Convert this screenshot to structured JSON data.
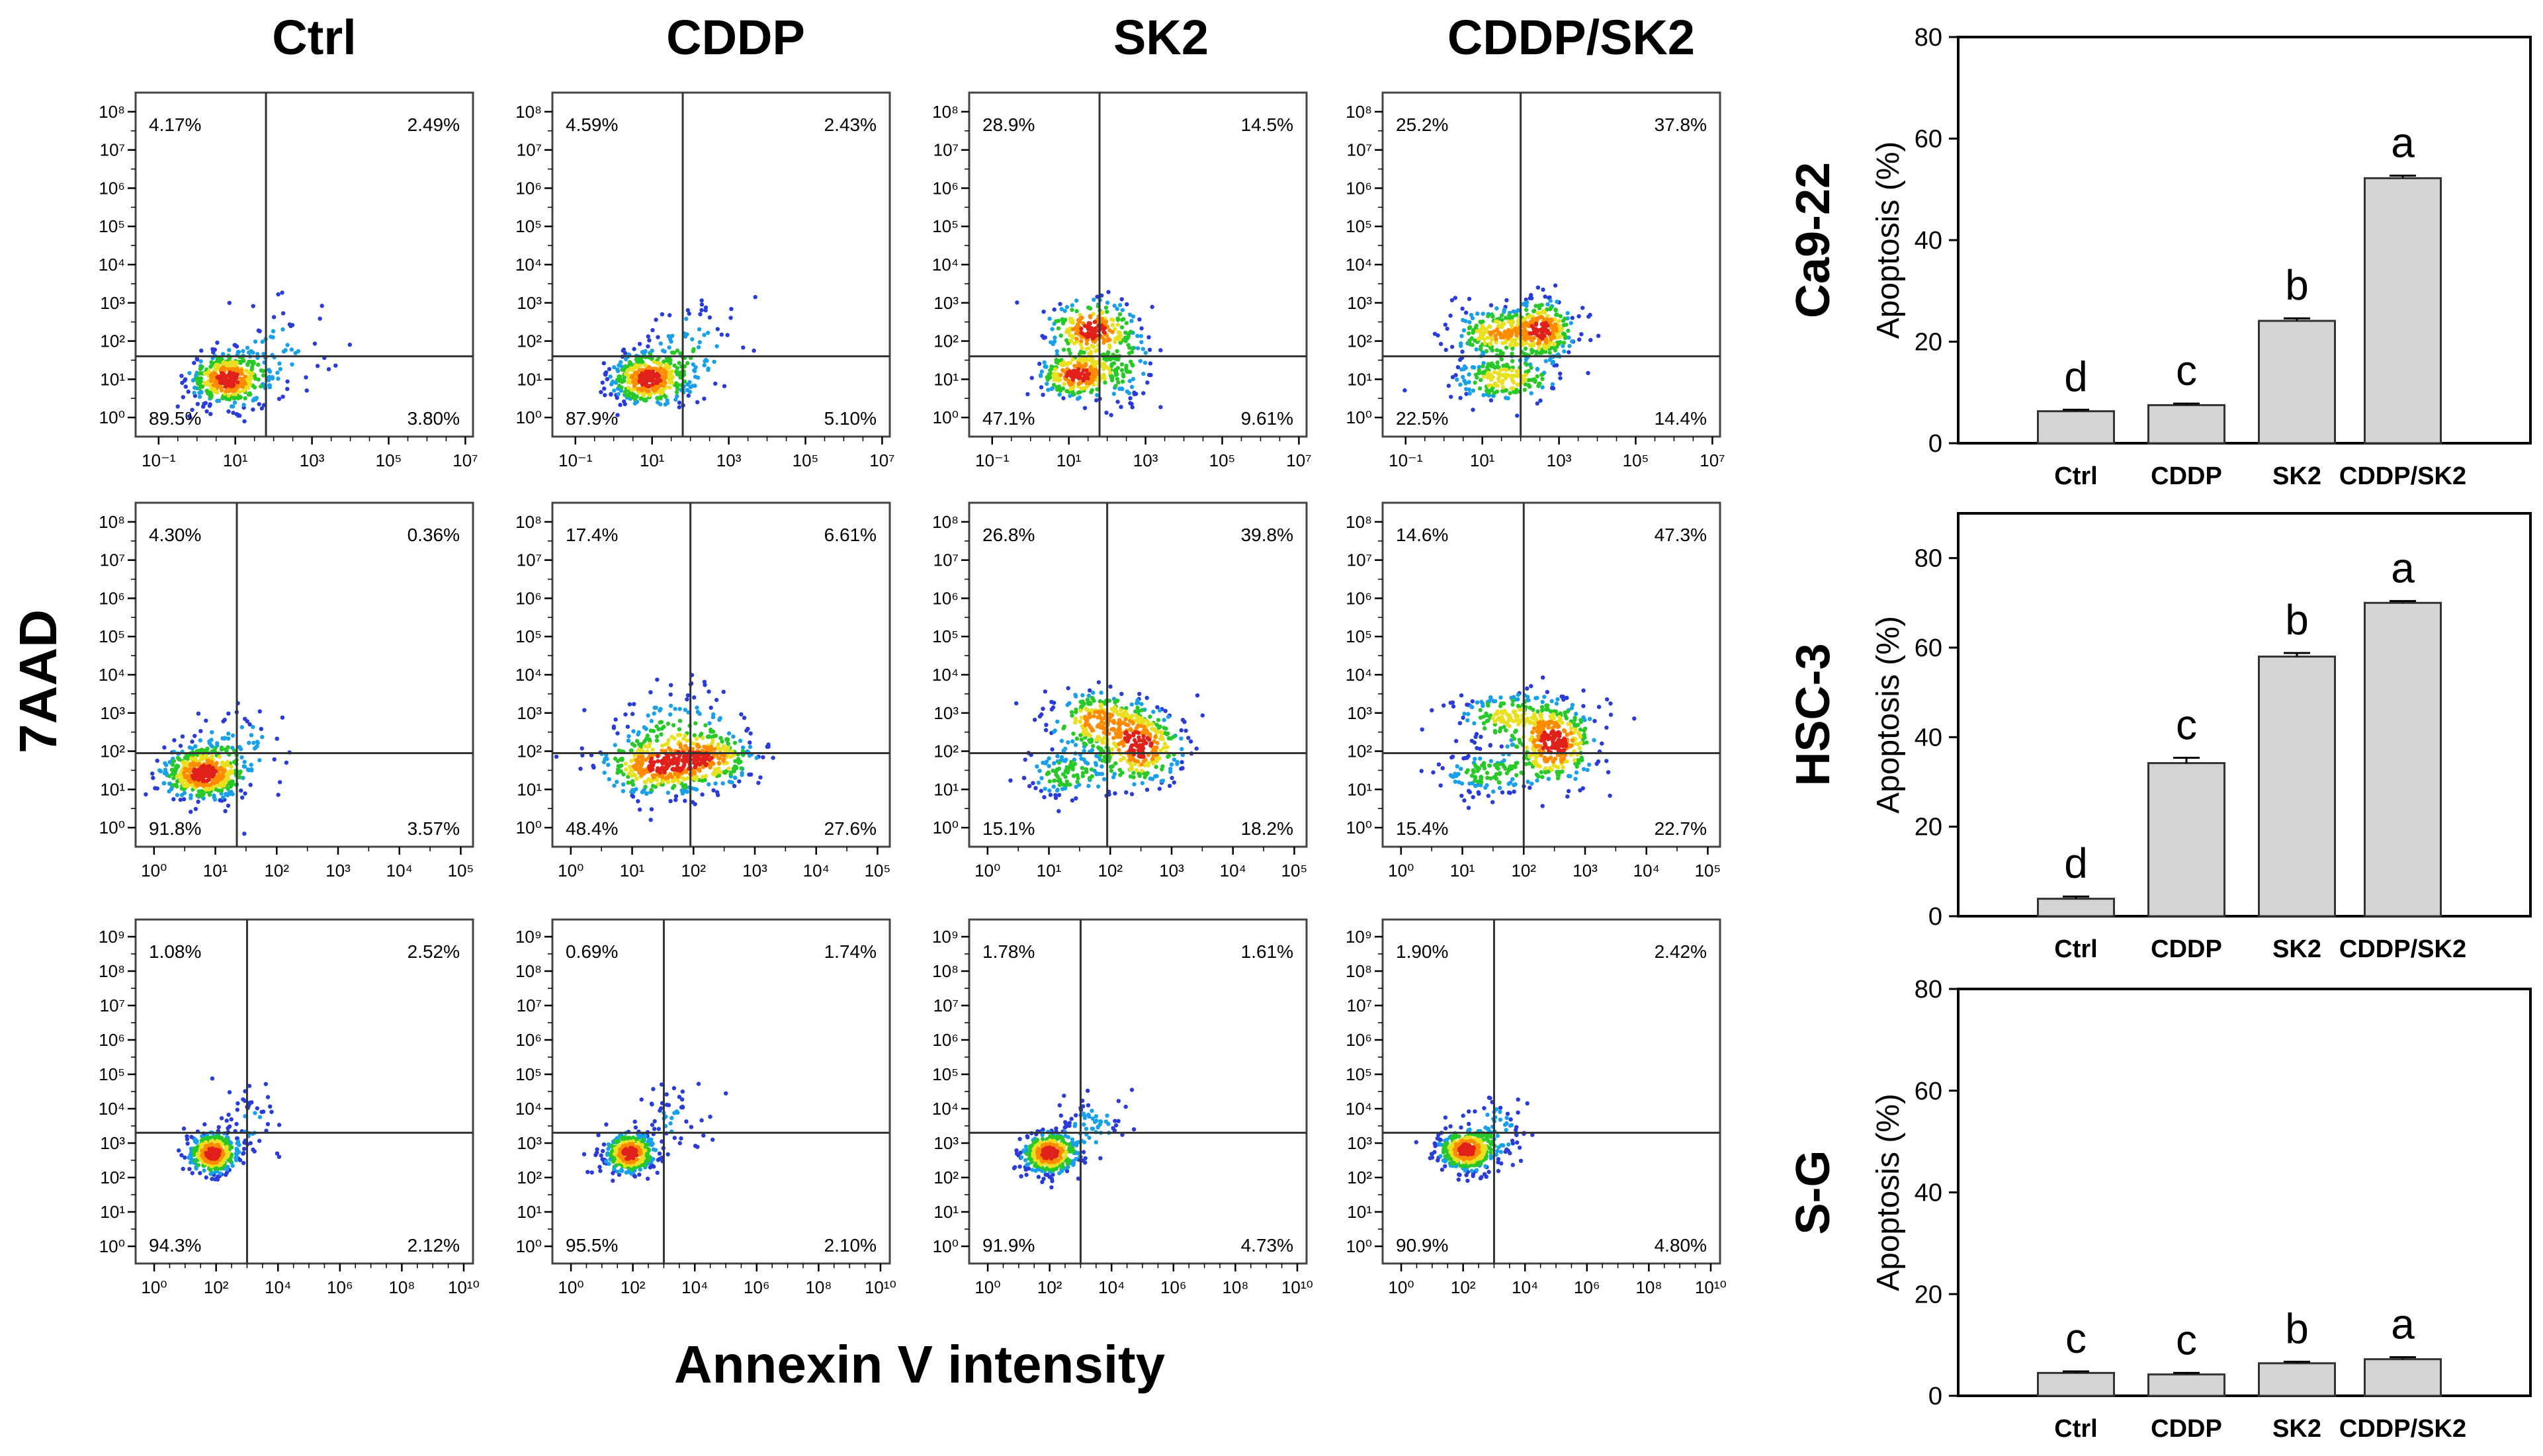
{
  "figure": {
    "column_titles": [
      "Ctrl",
      "CDDP",
      "SK2",
      "CDDP/SK2"
    ],
    "y_axis_label": "7AAD",
    "x_axis_label": "Annexin V intensity",
    "bar_ylabel": "Apoptosis (%)"
  },
  "colors": {
    "bar_fill": "#d4d4d4",
    "bar_stroke": "#333333",
    "axis": "#000000",
    "quad_line": "#333333"
  },
  "chart_data": [
    {
      "type": "scatter",
      "title": "Ctrl",
      "cell_line": "Ca9-22",
      "x_ticks": [
        -1,
        1,
        3,
        5,
        7
      ],
      "y_ticks": [
        0,
        1,
        2,
        3,
        4,
        5,
        6,
        7,
        8
      ],
      "xlim": [
        -1.6,
        7.2
      ],
      "ylim": [
        -0.5,
        8.5
      ],
      "gate": [
        1.8,
        1.6
      ],
      "quadrants": {
        "ul": "4.17%",
        "ur": "2.49%",
        "ll": "89.5%",
        "lr": "3.80%"
      },
      "clusters": [
        {
          "x": 0.8,
          "y": 1.0,
          "sx": 0.5,
          "sy": 0.35,
          "n": 420
        },
        {
          "x": 2.2,
          "y": 1.7,
          "sx": 0.7,
          "sy": 0.7,
          "n": 60
        }
      ]
    },
    {
      "type": "scatter",
      "title": "CDDP",
      "cell_line": "Ca9-22",
      "x_ticks": [
        -1,
        1,
        3,
        5,
        7
      ],
      "y_ticks": [
        0,
        1,
        2,
        3,
        4,
        5,
        6,
        7,
        8
      ],
      "xlim": [
        -1.6,
        7.2
      ],
      "ylim": [
        -0.5,
        8.5
      ],
      "gate": [
        1.8,
        1.6
      ],
      "quadrants": {
        "ul": "4.59%",
        "ur": "2.43%",
        "ll": "87.9%",
        "lr": "5.10%"
      },
      "clusters": [
        {
          "x": 0.9,
          "y": 1.0,
          "sx": 0.5,
          "sy": 0.35,
          "n": 420
        },
        {
          "x": 2.0,
          "y": 1.8,
          "sx": 0.7,
          "sy": 0.7,
          "n": 80
        }
      ]
    },
    {
      "type": "scatter",
      "title": "SK2",
      "cell_line": "Ca9-22",
      "x_ticks": [
        -1,
        1,
        3,
        5,
        7
      ],
      "y_ticks": [
        0,
        1,
        2,
        3,
        4,
        5,
        6,
        7,
        8
      ],
      "xlim": [
        -1.6,
        7.2
      ],
      "ylim": [
        -0.5,
        8.5
      ],
      "gate": [
        1.8,
        1.6
      ],
      "quadrants": {
        "ul": "28.9%",
        "ur": "14.5%",
        "ll": "47.1%",
        "lr": "9.61%"
      },
      "clusters": [
        {
          "x": 1.2,
          "y": 1.1,
          "sx": 0.5,
          "sy": 0.3,
          "n": 260
        },
        {
          "x": 1.6,
          "y": 2.3,
          "sx": 0.6,
          "sy": 0.4,
          "n": 260
        },
        {
          "x": 2.4,
          "y": 1.3,
          "sx": 0.5,
          "sy": 0.5,
          "n": 80
        }
      ]
    },
    {
      "type": "scatter",
      "title": "CDDP/SK2",
      "cell_line": "Ca9-22",
      "x_ticks": [
        -1,
        1,
        3,
        5,
        7
      ],
      "y_ticks": [
        0,
        1,
        2,
        3,
        4,
        5,
        6,
        7,
        8
      ],
      "xlim": [
        -1.6,
        7.2
      ],
      "ylim": [
        -0.5,
        8.5
      ],
      "gate": [
        2.0,
        1.6
      ],
      "quadrants": {
        "ul": "25.2%",
        "ur": "37.8%",
        "ll": "22.5%",
        "lr": "14.4%"
      },
      "clusters": [
        {
          "x": 1.4,
          "y": 2.2,
          "sx": 0.6,
          "sy": 0.35,
          "n": 220
        },
        {
          "x": 2.6,
          "y": 2.3,
          "sx": 0.4,
          "sy": 0.4,
          "n": 280
        },
        {
          "x": 1.6,
          "y": 1.0,
          "sx": 0.7,
          "sy": 0.3,
          "n": 200
        }
      ]
    },
    {
      "type": "scatter",
      "title": "Ctrl",
      "cell_line": "HSC-3",
      "x_ticks": [
        0,
        1,
        2,
        3,
        4,
        5
      ],
      "y_ticks": [
        0,
        1,
        2,
        3,
        4,
        5,
        6,
        7,
        8
      ],
      "xlim": [
        -0.3,
        5.2
      ],
      "ylim": [
        -0.5,
        8.5
      ],
      "gate": [
        1.35,
        1.95
      ],
      "quadrants": {
        "ul": "4.30%",
        "ur": "0.36%",
        "ll": "91.8%",
        "lr": "3.57%"
      },
      "clusters": [
        {
          "x": 0.8,
          "y": 1.4,
          "sx": 0.35,
          "sy": 0.35,
          "n": 480
        },
        {
          "x": 1.3,
          "y": 2.2,
          "sx": 0.5,
          "sy": 0.6,
          "n": 60
        }
      ]
    },
    {
      "type": "scatter",
      "title": "CDDP",
      "cell_line": "HSC-3",
      "x_ticks": [
        0,
        1,
        2,
        3,
        4,
        5
      ],
      "y_ticks": [
        0,
        1,
        2,
        3,
        4,
        5,
        6,
        7,
        8
      ],
      "xlim": [
        -0.3,
        5.2
      ],
      "ylim": [
        -0.5,
        8.5
      ],
      "gate": [
        1.95,
        1.95
      ],
      "quadrants": {
        "ul": "17.4%",
        "ur": "6.61%",
        "ll": "48.4%",
        "lr": "27.6%"
      },
      "clusters": [
        {
          "x": 1.4,
          "y": 1.6,
          "sx": 0.5,
          "sy": 0.4,
          "n": 320
        },
        {
          "x": 2.3,
          "y": 1.8,
          "sx": 0.4,
          "sy": 0.35,
          "n": 220
        },
        {
          "x": 1.8,
          "y": 2.5,
          "sx": 0.5,
          "sy": 0.6,
          "n": 120
        }
      ]
    },
    {
      "type": "scatter",
      "title": "SK2",
      "cell_line": "HSC-3",
      "x_ticks": [
        0,
        1,
        2,
        3,
        4,
        5
      ],
      "y_ticks": [
        0,
        1,
        2,
        3,
        4,
        5,
        6,
        7,
        8
      ],
      "xlim": [
        -0.3,
        5.2
      ],
      "ylim": [
        -0.5,
        8.5
      ],
      "gate": [
        1.95,
        1.95
      ],
      "quadrants": {
        "ul": "26.8%",
        "ur": "39.8%",
        "ll": "15.1%",
        "lr": "18.2%"
      },
      "clusters": [
        {
          "x": 1.8,
          "y": 2.8,
          "sx": 0.4,
          "sy": 0.4,
          "n": 240
        },
        {
          "x": 2.5,
          "y": 2.1,
          "sx": 0.35,
          "sy": 0.5,
          "n": 300
        },
        {
          "x": 1.3,
          "y": 1.4,
          "sx": 0.4,
          "sy": 0.35,
          "n": 120
        }
      ]
    },
    {
      "type": "scatter",
      "title": "CDDP/SK2",
      "cell_line": "HSC-3",
      "x_ticks": [
        0,
        1,
        2,
        3,
        4,
        5
      ],
      "y_ticks": [
        0,
        1,
        2,
        3,
        4,
        5,
        6,
        7,
        8
      ],
      "xlim": [
        -0.3,
        5.2
      ],
      "ylim": [
        -0.5,
        8.5
      ],
      "gate": [
        2.0,
        1.95
      ],
      "quadrants": {
        "ul": "14.6%",
        "ur": "47.3%",
        "ll": "15.4%",
        "lr": "22.7%"
      },
      "clusters": [
        {
          "x": 2.5,
          "y": 2.2,
          "sx": 0.35,
          "sy": 0.55,
          "n": 340
        },
        {
          "x": 1.7,
          "y": 2.9,
          "sx": 0.4,
          "sy": 0.35,
          "n": 160
        },
        {
          "x": 1.4,
          "y": 1.4,
          "sx": 0.4,
          "sy": 0.3,
          "n": 120
        }
      ]
    },
    {
      "type": "scatter",
      "title": "Ctrl",
      "cell_line": "S-G",
      "x_ticks": [
        0,
        2,
        4,
        6,
        8,
        10
      ],
      "y_ticks": [
        0,
        1,
        2,
        3,
        4,
        5,
        6,
        7,
        8,
        9
      ],
      "xlim": [
        -0.6,
        10.3
      ],
      "ylim": [
        -0.5,
        9.5
      ],
      "gate": [
        3.0,
        3.3
      ],
      "quadrants": {
        "ul": "1.08%",
        "ur": "2.52%",
        "ll": "94.3%",
        "lr": "2.12%"
      },
      "clusters": [
        {
          "x": 1.9,
          "y": 2.7,
          "sx": 0.4,
          "sy": 0.3,
          "n": 420
        },
        {
          "x": 3.2,
          "y": 3.6,
          "sx": 0.5,
          "sy": 0.5,
          "n": 50
        }
      ]
    },
    {
      "type": "scatter",
      "title": "CDDP",
      "cell_line": "S-G",
      "x_ticks": [
        0,
        2,
        4,
        6,
        8,
        10
      ],
      "y_ticks": [
        0,
        1,
        2,
        3,
        4,
        5,
        6,
        7,
        8,
        9
      ],
      "xlim": [
        -0.6,
        10.3
      ],
      "ylim": [
        -0.5,
        9.5
      ],
      "gate": [
        3.0,
        3.3
      ],
      "quadrants": {
        "ul": "0.69%",
        "ur": "1.74%",
        "ll": "95.5%",
        "lr": "2.10%"
      },
      "clusters": [
        {
          "x": 1.9,
          "y": 2.7,
          "sx": 0.4,
          "sy": 0.3,
          "n": 420
        },
        {
          "x": 3.3,
          "y": 3.7,
          "sx": 0.5,
          "sy": 0.5,
          "n": 50
        }
      ]
    },
    {
      "type": "scatter",
      "title": "SK2",
      "cell_line": "S-G",
      "x_ticks": [
        0,
        2,
        4,
        6,
        8,
        10
      ],
      "y_ticks": [
        0,
        1,
        2,
        3,
        4,
        5,
        6,
        7,
        8,
        9
      ],
      "xlim": [
        -0.6,
        10.3
      ],
      "ylim": [
        -0.5,
        9.5
      ],
      "gate": [
        3.0,
        3.3
      ],
      "quadrants": {
        "ul": "1.78%",
        "ur": "1.61%",
        "ll": "91.9%",
        "lr": "4.73%"
      },
      "clusters": [
        {
          "x": 2.0,
          "y": 2.7,
          "sx": 0.45,
          "sy": 0.3,
          "n": 420
        },
        {
          "x": 3.4,
          "y": 3.5,
          "sx": 0.6,
          "sy": 0.5,
          "n": 60
        }
      ]
    },
    {
      "type": "scatter",
      "title": "CDDP/SK2",
      "cell_line": "S-G",
      "x_ticks": [
        0,
        2,
        4,
        6,
        8,
        10
      ],
      "y_ticks": [
        0,
        1,
        2,
        3,
        4,
        5,
        6,
        7,
        8,
        9
      ],
      "xlim": [
        -0.6,
        10.3
      ],
      "ylim": [
        -0.5,
        9.5
      ],
      "gate": [
        3.0,
        3.3
      ],
      "quadrants": {
        "ul": "1.90%",
        "ur": "2.42%",
        "ll": "90.9%",
        "lr": "4.80%"
      },
      "clusters": [
        {
          "x": 2.1,
          "y": 2.8,
          "sx": 0.45,
          "sy": 0.3,
          "n": 420
        },
        {
          "x": 3.1,
          "y": 3.4,
          "sx": 0.5,
          "sy": 0.6,
          "n": 60
        }
      ]
    },
    {
      "type": "bar",
      "title": "Ca9-22",
      "ylabel": "Apoptosis (%)",
      "categories": [
        "Ctrl",
        "CDDP",
        "SK2",
        "CDDP/SK2"
      ],
      "values": [
        6.3,
        7.5,
        24.1,
        52.2
      ],
      "errors": [
        0.3,
        0.3,
        0.5,
        0.5
      ],
      "letters": [
        "d",
        "c",
        "b",
        "a"
      ],
      "ylim": [
        0,
        80
      ],
      "yticks": [
        0,
        20,
        40,
        60,
        80
      ]
    },
    {
      "type": "bar",
      "title": "HSC-3",
      "ylabel": "Apoptosis (%)",
      "categories": [
        "Ctrl",
        "CDDP",
        "SK2",
        "CDDP/SK2"
      ],
      "values": [
        3.9,
        34.2,
        58.0,
        70.0
      ],
      "errors": [
        0.5,
        1.2,
        0.8,
        0.4
      ],
      "letters": [
        "d",
        "c",
        "b",
        "a"
      ],
      "ylim": [
        0,
        90
      ],
      "yticks": [
        0,
        20,
        40,
        60,
        80
      ]
    },
    {
      "type": "bar",
      "title": "S-G",
      "ylabel": "Apoptosis (%)",
      "categories": [
        "Ctrl",
        "CDDP",
        "SK2",
        "CDDP/SK2"
      ],
      "values": [
        4.5,
        4.2,
        6.4,
        7.2
      ],
      "errors": [
        0.3,
        0.3,
        0.3,
        0.4
      ],
      "letters": [
        "c",
        "c",
        "b",
        "a"
      ],
      "ylim": [
        0,
        80
      ],
      "yticks": [
        0,
        20,
        40,
        60,
        80
      ]
    }
  ]
}
